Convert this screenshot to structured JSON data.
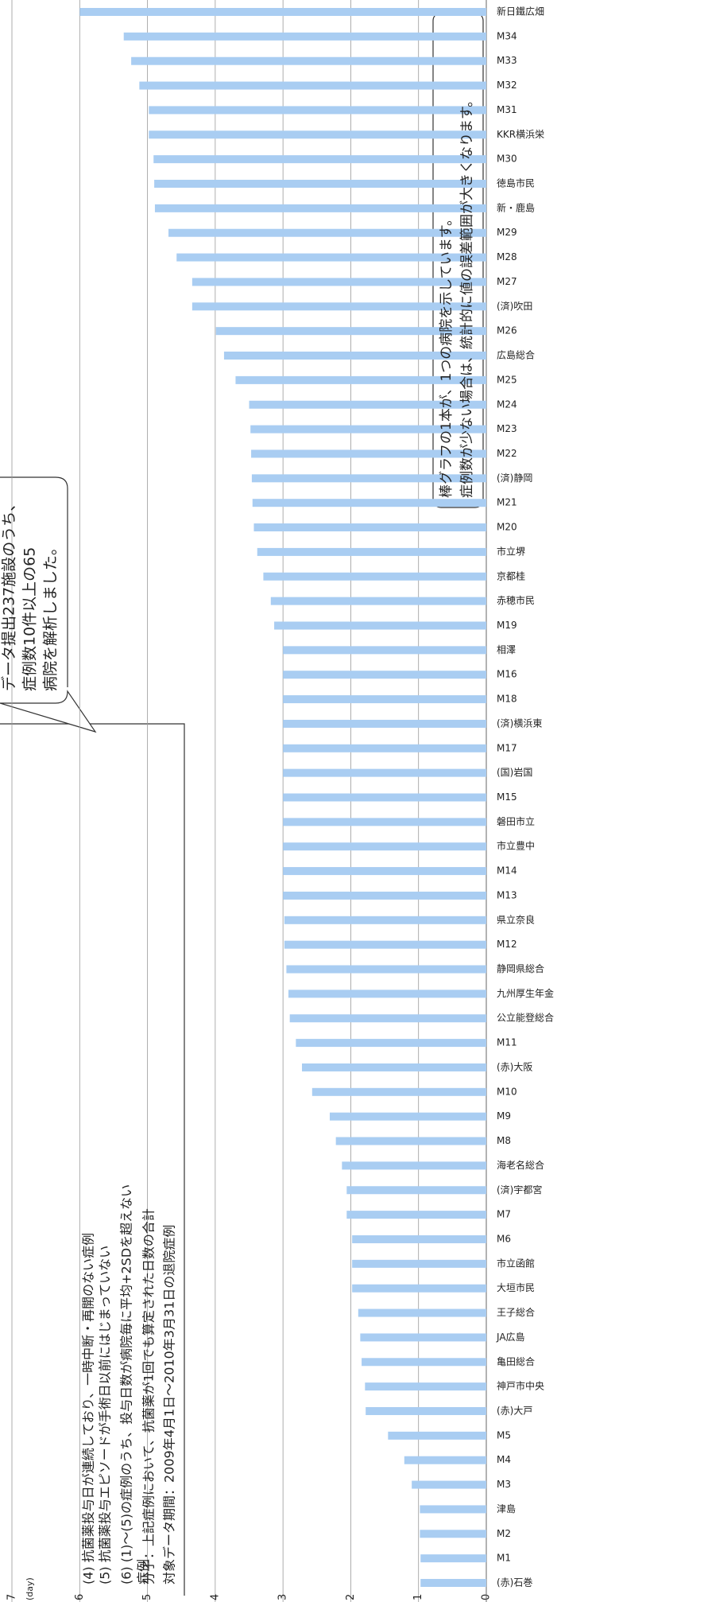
{
  "chart_data": {
    "type": "bar",
    "orientation": "rotated-ccw",
    "ylabel": "(day)",
    "color": "#a9cdf2",
    "categories": [
      "(赤)石巻",
      "M1",
      "M2",
      "津島",
      "M3",
      "M4",
      "M5",
      "(赤)大戸",
      "神戸市中央",
      "亀田総合",
      "JA広島",
      "王子総合",
      "大垣市民",
      "市立函館",
      "M6",
      "M7",
      "(済)宇都宮",
      "海老名総合",
      "M8",
      "M9",
      "M10",
      "(赤)大阪",
      "M11",
      "公立能登総合",
      "九州厚生年金",
      "静岡県総合",
      "M12",
      "県立奈良",
      "M13",
      "M14",
      "市立豊中",
      "磐田市立",
      "M15",
      "(国)岩国",
      "M17",
      "(済)横浜東",
      "M18",
      "M16",
      "相澤",
      "M19",
      "赤穂市民",
      "京都桂",
      "市立堺",
      "M20",
      "M21",
      "(済)静岡",
      "M22",
      "M23",
      "M24",
      "M25",
      "広島総合",
      "M26",
      "(済)吹田",
      "M27",
      "M28",
      "M29",
      "新・鹿島",
      "徳島市民",
      "M30",
      "KKR横浜栄",
      "M31",
      "M32",
      "M33",
      "M34",
      "新日鐵広畑"
    ],
    "values": [
      0.97,
      0.97,
      0.98,
      0.98,
      1.1,
      1.21,
      1.45,
      1.78,
      1.79,
      1.84,
      1.86,
      1.89,
      1.98,
      1.98,
      1.98,
      2.06,
      2.06,
      2.13,
      2.22,
      2.31,
      2.57,
      2.72,
      2.81,
      2.9,
      2.92,
      2.95,
      2.98,
      2.98,
      3.0,
      3.0,
      3.0,
      3.0,
      3.0,
      3.0,
      3.0,
      3.0,
      3.0,
      3.0,
      3.0,
      3.13,
      3.18,
      3.29,
      3.38,
      3.43,
      3.45,
      3.46,
      3.47,
      3.48,
      3.5,
      3.7,
      3.87,
      3.99,
      4.34,
      4.34,
      4.57,
      4.69,
      4.89,
      4.9,
      4.91,
      4.98,
      4.98,
      5.12,
      5.24,
      5.35,
      6.0
    ],
    "ylim": [
      0,
      7
    ],
    "yticks": [
      0,
      1,
      2,
      3,
      4,
      5,
      6,
      7
    ],
    "grid": true,
    "notes": [
      "(4) 抗菌薬投与日が連続しており、一時中断・再開のない症例",
      "(5) 抗菌薬投与エピソードが手術日以前にはじまっていない",
      "(6) (1)〜(5)の症例のうち、投与日数が病院毎に平均+2SDを超えない",
      "症例",
      "分子：上記症例において、抗菌薬が1回でも算定された日数の合計",
      "対象データ期間：2009年4月1日〜2010年3月31日の退院症例"
    ],
    "callouts": [
      [
        "データ提出237施設のうち、",
        "症例数10件以上の65",
        "病院を解析しました。"
      ],
      [
        "棒グラフの1本が、1つの病院を示しています。",
        "症例数が少ない場合は、統計的に値の誤差範囲が大きくなります。"
      ]
    ]
  }
}
